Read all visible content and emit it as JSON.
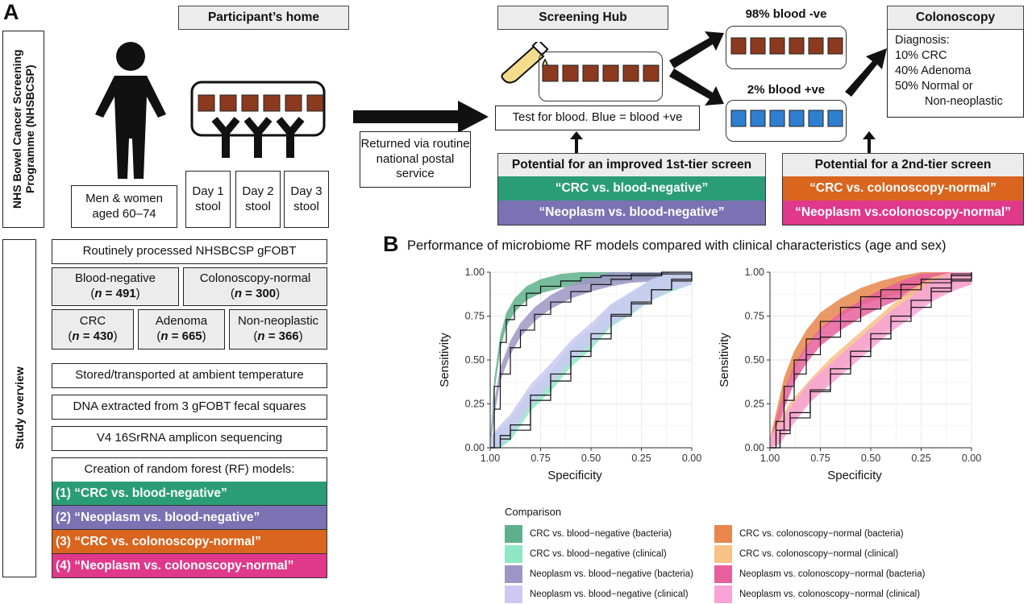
{
  "panelA": {
    "letter": "A",
    "participant_home": "Participant’s home",
    "programme_label": "NHS Bowel Cancer Screening Programme (NHSBCSP)",
    "participants": "Men & women aged 60–74",
    "stool_days": [
      "Day 1 stool",
      "Day 2 stool",
      "Day 3 stool"
    ],
    "returned_via": "Returned via routine national postal service",
    "screening_hub": "Screening Hub",
    "test_for_blood": "Test for blood. Blue = blood +ve",
    "blood_neg_label": "98% blood -ve",
    "blood_pos_label": "2% blood +ve",
    "colonoscopy": {
      "title": "Colonoscopy",
      "lines": [
        "Diagnosis:",
        "10% CRC",
        "40% Adenoma",
        "50% Normal or",
        "Non-neoplastic"
      ]
    },
    "first_tier": {
      "title": "Potential for an improved 1st-tier screen",
      "items": [
        "“CRC vs. blood-negative”",
        "“Neoplasm vs. blood-negative”"
      ]
    },
    "second_tier": {
      "title": "Potential for a 2nd-tier screen",
      "items": [
        "“CRC vs. colonoscopy-normal”",
        "“Neoplasm vs.colonoscopy-normal”"
      ]
    },
    "study_overview_label": "Study overview",
    "routinely_processed": "Routinely processed NHSBCSP gFOBT",
    "groups": [
      {
        "name": "Blood-negative",
        "n_label": "n",
        "n": "= 491"
      },
      {
        "name": "Colonoscopy-normal",
        "n_label": "n",
        "n": "= 300"
      },
      {
        "name": "CRC",
        "n_label": "n",
        "n": "= 430"
      },
      {
        "name": "Adenoma",
        "n_label": "n",
        "n": "= 665"
      },
      {
        "name": "Non-neoplastic",
        "n_label": "n",
        "n": "= 366"
      }
    ],
    "steps": [
      "Stored/transported at ambient temperature",
      "DNA extracted from 3 gFOBT fecal squares",
      "V4 16SrRNA amplicon sequencing"
    ],
    "rf_title": "Creation of random forest (RF) models:",
    "rf_models": [
      "(1) “CRC vs. blood-negative”",
      "(2) “Neoplasm vs. blood-negative”",
      "(3) “CRC vs. colonoscopy-normal”",
      "(4) “Neoplasm vs. colonoscopy-normal”"
    ]
  },
  "colors": {
    "green": "#2a9d77",
    "purple": "#7b71b3",
    "orange": "#d9651e",
    "pink": "#e0388b",
    "brown": "#8b3a1f",
    "blue": "#2f7fd0",
    "tube": "#f4dc8f"
  },
  "panelB": {
    "letter": "B",
    "title": "Performance of microbiome RF models compared with clinical characteristics (age and sex)",
    "legend_title": "Comparison",
    "legend": [
      {
        "label": "CRC vs. blood−negative (bacteria)",
        "color": "#5fb08c"
      },
      {
        "label": "CRC vs. blood−negative (clinical)",
        "color": "#8fe6c4"
      },
      {
        "label": "Neoplasm vs. blood−negative (bacteria)",
        "color": "#9d96c4"
      },
      {
        "label": "Neoplasm vs. blood−negative (clinical)",
        "color": "#cdc9f2"
      },
      {
        "label": "CRC vs. colonoscopy−normal (bacteria)",
        "color": "#e8864c"
      },
      {
        "label": "CRC vs. colonoscopy−normal (clinical)",
        "color": "#f8c186"
      },
      {
        "label": "Neoplasm vs. colonoscopy−normal (bacteria)",
        "color": "#e6609d"
      },
      {
        "label": "Neoplasm vs. colonoscopy−normal (clinical)",
        "color": "#f7a3d6"
      }
    ]
  },
  "chart_data": [
    {
      "type": "line",
      "title": "",
      "xlabel": "Specificity",
      "ylabel": "Sensitivity",
      "xlim": [
        1.0,
        0.0
      ],
      "ylim": [
        0.0,
        1.0
      ],
      "xticks": [
        "1.00",
        "0.75",
        "0.50",
        "0.25",
        "0.00"
      ],
      "yticks": [
        "0.00",
        "0.25",
        "0.50",
        "0.75",
        "1.00"
      ],
      "grid": true,
      "series": [
        {
          "name": "CRC vs. blood−negative (bacteria)",
          "color": "#5fb08c",
          "x": [
            1.0,
            0.98,
            0.95,
            0.92,
            0.88,
            0.82,
            0.75,
            0.65,
            0.55,
            0.45,
            0.3,
            0.15,
            0.0
          ],
          "y": [
            0.0,
            0.35,
            0.6,
            0.73,
            0.81,
            0.88,
            0.92,
            0.95,
            0.97,
            0.98,
            0.99,
            1.0,
            1.0
          ],
          "band": 0.04
        },
        {
          "name": "Neoplasm vs. blood−negative (bacteria)",
          "color": "#9d96c4",
          "x": [
            1.0,
            0.98,
            0.95,
            0.9,
            0.85,
            0.78,
            0.7,
            0.6,
            0.5,
            0.4,
            0.3,
            0.15,
            0.0
          ],
          "y": [
            0.0,
            0.22,
            0.42,
            0.57,
            0.67,
            0.76,
            0.83,
            0.89,
            0.93,
            0.96,
            0.98,
            0.99,
            1.0
          ],
          "band": 0.04
        },
        {
          "name": "CRC vs. blood−negative (clinical)",
          "color": "#8fe6c4",
          "x": [
            1.0,
            0.95,
            0.9,
            0.8,
            0.7,
            0.6,
            0.5,
            0.4,
            0.3,
            0.2,
            0.1,
            0.0
          ],
          "y": [
            0.0,
            0.05,
            0.1,
            0.27,
            0.38,
            0.52,
            0.62,
            0.75,
            0.82,
            0.9,
            0.95,
            0.99
          ],
          "band": 0.06
        },
        {
          "name": "Neoplasm vs. blood−negative (clinical)",
          "color": "#cdc9f2",
          "x": [
            1.0,
            0.95,
            0.9,
            0.8,
            0.7,
            0.6,
            0.5,
            0.4,
            0.3,
            0.2,
            0.1,
            0.0
          ],
          "y": [
            0.0,
            0.07,
            0.13,
            0.3,
            0.42,
            0.55,
            0.65,
            0.76,
            0.83,
            0.9,
            0.96,
            0.99
          ],
          "band": 0.06
        }
      ]
    },
    {
      "type": "line",
      "title": "",
      "xlabel": "Specificity",
      "ylabel": "Sensitivity",
      "xlim": [
        1.0,
        0.0
      ],
      "ylim": [
        0.0,
        1.0
      ],
      "xticks": [
        "1.00",
        "0.75",
        "0.50",
        "0.25",
        "0.00"
      ],
      "yticks": [
        "0.00",
        "0.25",
        "0.50",
        "0.75",
        "1.00"
      ],
      "grid": true,
      "series": [
        {
          "name": "CRC vs. colonoscopy−normal (bacteria)",
          "color": "#e8864c",
          "x": [
            1.0,
            0.97,
            0.93,
            0.88,
            0.82,
            0.75,
            0.65,
            0.55,
            0.45,
            0.35,
            0.25,
            0.1,
            0.0
          ],
          "y": [
            0.0,
            0.15,
            0.35,
            0.5,
            0.62,
            0.72,
            0.8,
            0.86,
            0.9,
            0.93,
            0.96,
            0.99,
            1.0
          ],
          "band": 0.05
        },
        {
          "name": "Neoplasm vs. colonoscopy−normal (bacteria)",
          "color": "#e6609d",
          "x": [
            1.0,
            0.97,
            0.93,
            0.88,
            0.82,
            0.75,
            0.65,
            0.55,
            0.45,
            0.35,
            0.25,
            0.1,
            0.0
          ],
          "y": [
            0.0,
            0.1,
            0.27,
            0.42,
            0.53,
            0.63,
            0.72,
            0.79,
            0.85,
            0.9,
            0.94,
            0.98,
            1.0
          ],
          "band": 0.05
        },
        {
          "name": "CRC vs. colonoscopy−normal (clinical)",
          "color": "#f8c186",
          "x": [
            1.0,
            0.95,
            0.9,
            0.8,
            0.7,
            0.6,
            0.5,
            0.4,
            0.3,
            0.2,
            0.1,
            0.0
          ],
          "y": [
            0.0,
            0.1,
            0.2,
            0.33,
            0.45,
            0.55,
            0.65,
            0.75,
            0.84,
            0.91,
            0.96,
            0.99
          ],
          "band": 0.06
        },
        {
          "name": "Neoplasm vs. colonoscopy−normal (clinical)",
          "color": "#f7a3d6",
          "x": [
            1.0,
            0.95,
            0.9,
            0.8,
            0.7,
            0.6,
            0.5,
            0.4,
            0.3,
            0.2,
            0.1,
            0.0
          ],
          "y": [
            0.0,
            0.08,
            0.17,
            0.32,
            0.42,
            0.52,
            0.62,
            0.72,
            0.8,
            0.89,
            0.95,
            0.99
          ],
          "band": 0.06
        }
      ]
    }
  ]
}
